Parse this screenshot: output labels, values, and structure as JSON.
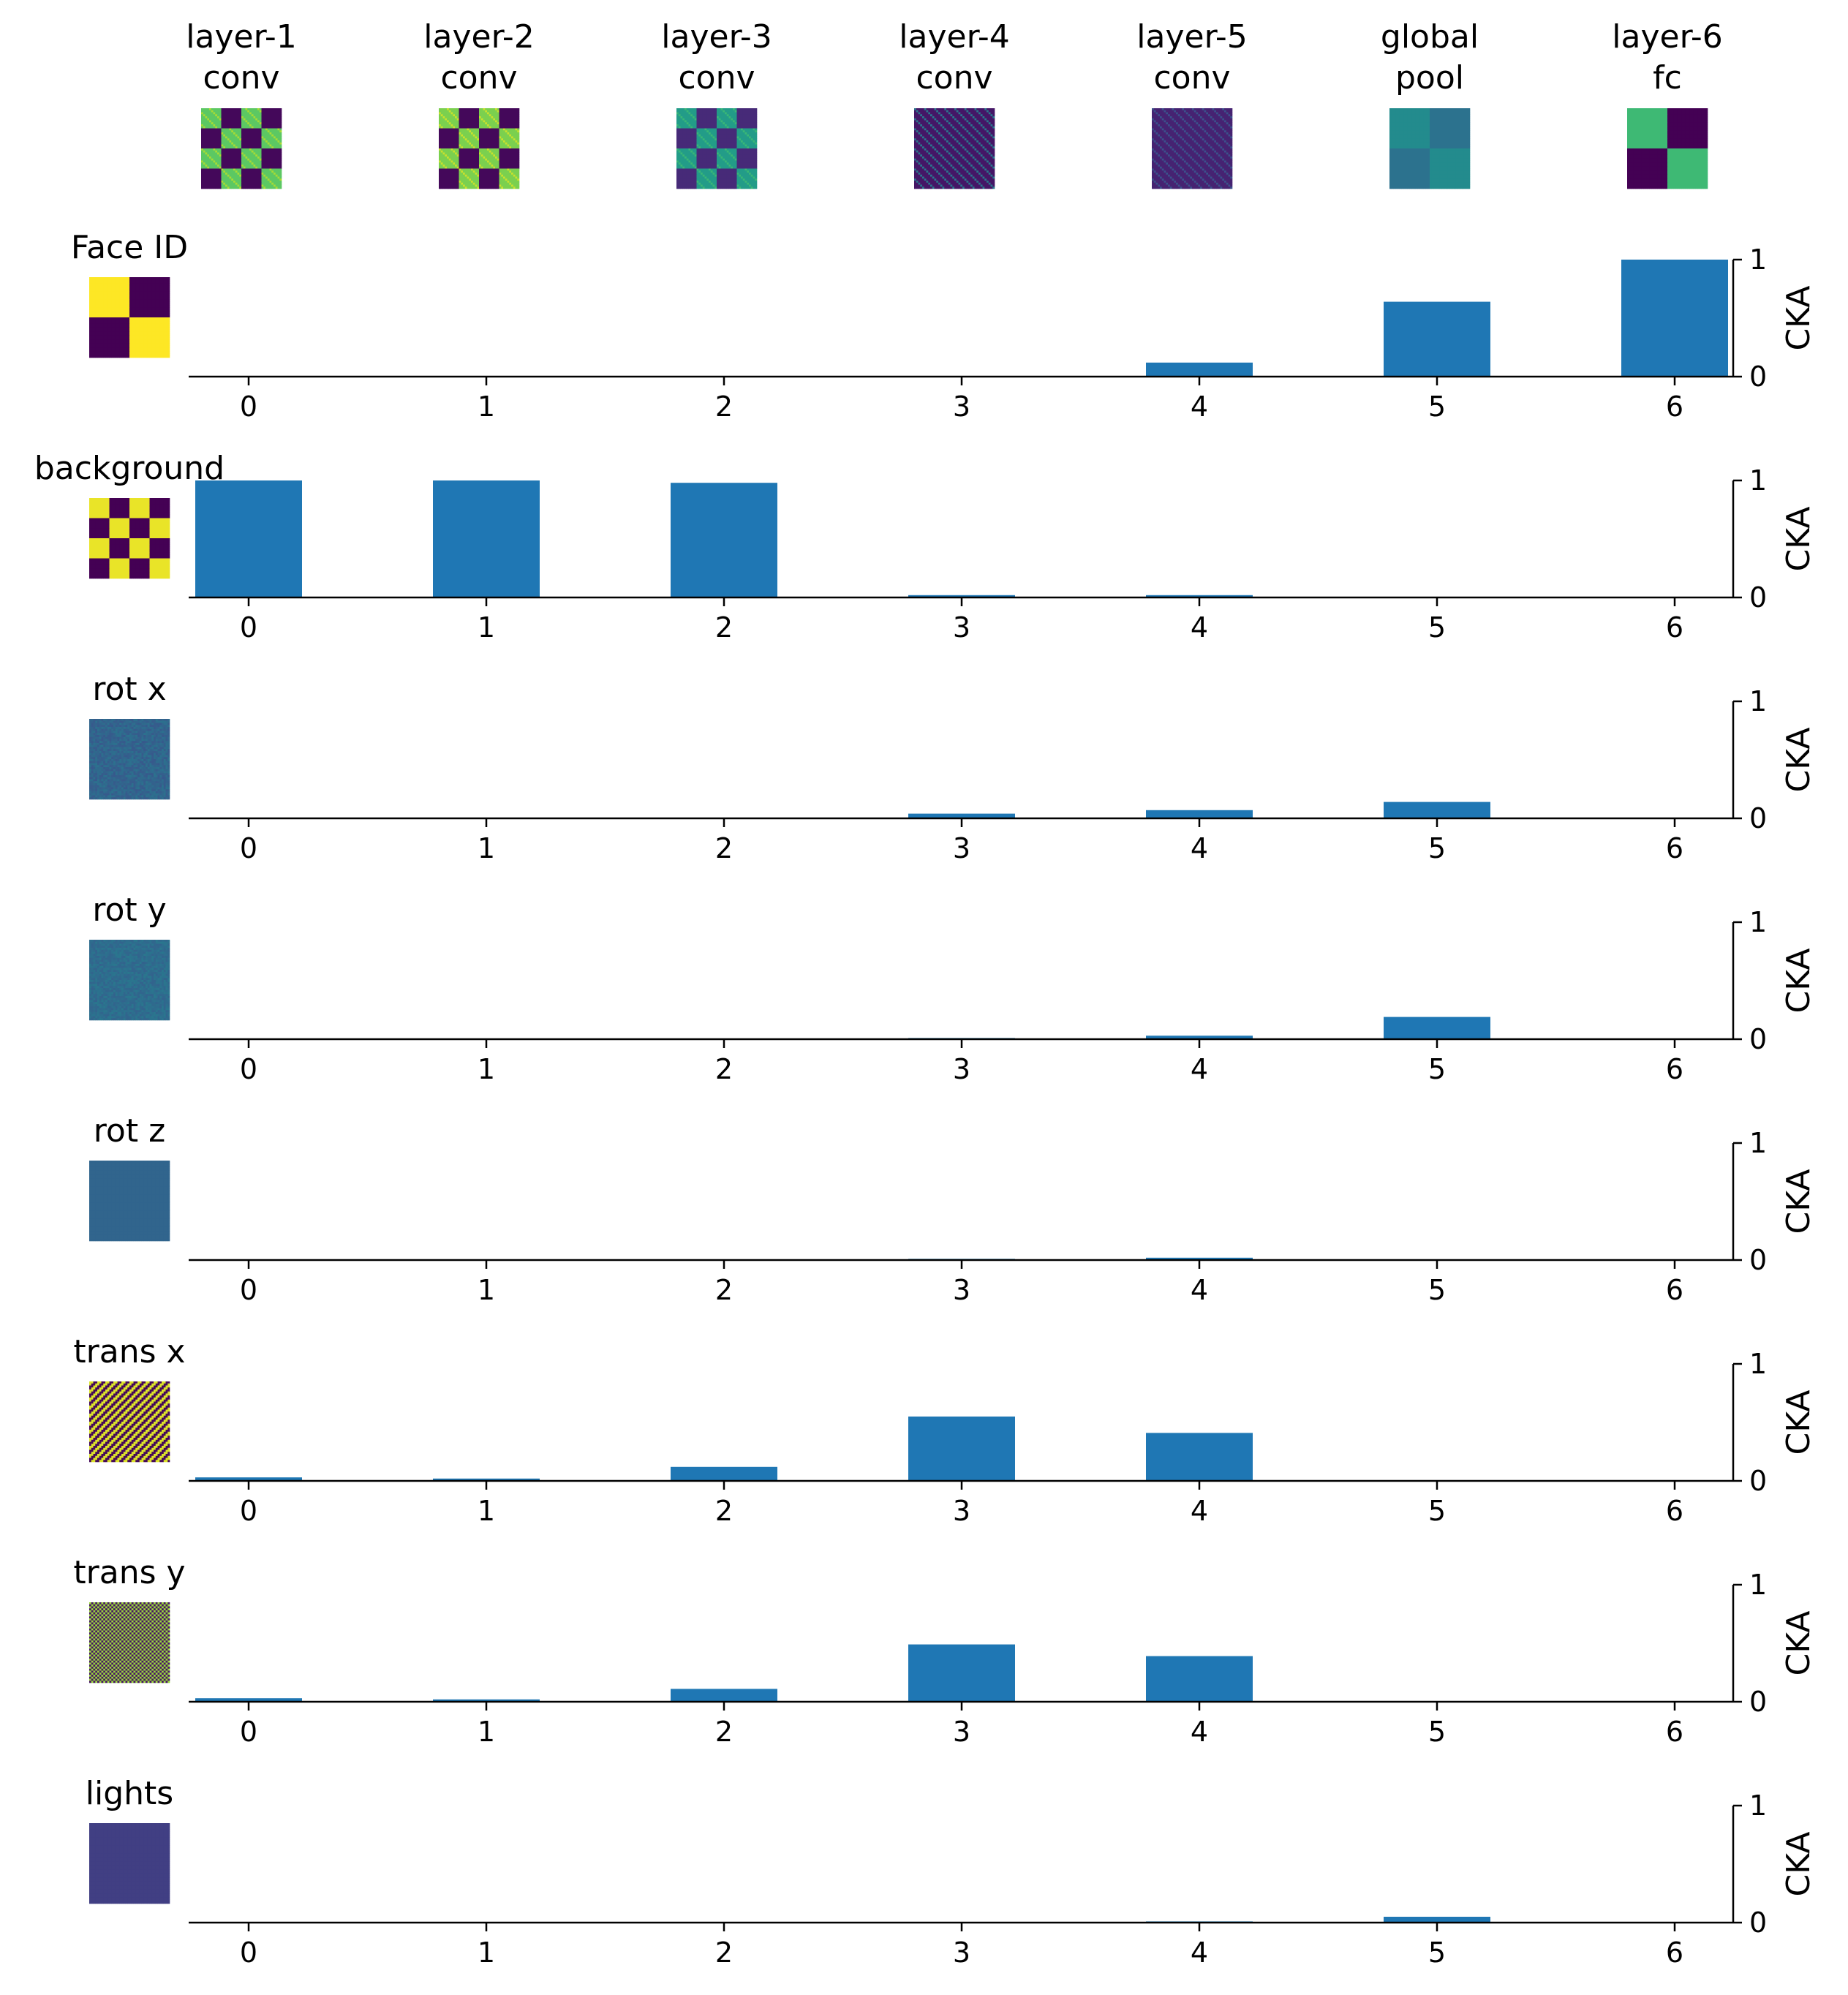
{
  "colors": {
    "bar": "#1f77b4",
    "viridis": [
      "#440154",
      "#472c7a",
      "#3b518b",
      "#2c718e",
      "#21908d",
      "#27ad81",
      "#5cc863",
      "#aadc32",
      "#fde725"
    ]
  },
  "layers": [
    {
      "line1": "layer-1",
      "line2": "conv",
      "thumb": {
        "pattern": "checker",
        "n": 4,
        "lo": 0.02,
        "hi": 0.75,
        "diag": true
      }
    },
    {
      "line1": "layer-2",
      "line2": "conv",
      "thumb": {
        "pattern": "checker",
        "n": 4,
        "lo": 0.02,
        "hi": 0.8,
        "diag": true
      }
    },
    {
      "line1": "layer-3",
      "line2": "conv",
      "thumb": {
        "pattern": "checker",
        "n": 4,
        "lo": 0.12,
        "hi": 0.55,
        "diag": true
      }
    },
    {
      "line1": "layer-4",
      "line2": "conv",
      "thumb": {
        "pattern": "stripes",
        "base": 0.06,
        "line": 0.4
      }
    },
    {
      "line1": "layer-5",
      "line2": "conv",
      "thumb": {
        "pattern": "stripes",
        "base": 0.1,
        "line": 0.25
      }
    },
    {
      "line1": "global",
      "line2": "pool",
      "thumb": {
        "pattern": "checker",
        "n": 2,
        "lo": 0.38,
        "hi": 0.48,
        "diag": false
      }
    },
    {
      "line1": "layer-6",
      "line2": "fc",
      "thumb": {
        "pattern": "checker",
        "n": 2,
        "lo": 0.0,
        "hi": 0.68,
        "diag": false
      }
    }
  ],
  "chart_data": {
    "type": "bar",
    "ylabel": "CKA",
    "ylim": [
      0,
      1
    ],
    "yticks": [
      "0",
      "1"
    ],
    "categories": [
      "0",
      "1",
      "2",
      "3",
      "4",
      "5",
      "6"
    ],
    "series": [
      {
        "name": "Face ID",
        "values": [
          0,
          0,
          0,
          0,
          0.12,
          0.64,
          1.0
        ],
        "thumb": {
          "pattern": "checker",
          "n": 2,
          "lo": 0.0,
          "hi": 1.0,
          "diag": false
        }
      },
      {
        "name": "background",
        "values": [
          1.0,
          1.0,
          0.98,
          0.02,
          0.02,
          0,
          0
        ],
        "thumb": {
          "pattern": "checker",
          "n": 4,
          "lo": 0.0,
          "hi": 0.97,
          "diag": false
        }
      },
      {
        "name": "rot x",
        "values": [
          0,
          0,
          0,
          0.04,
          0.07,
          0.14,
          0
        ],
        "thumb": {
          "pattern": "noise",
          "base": 0.33,
          "amp": 0.05
        }
      },
      {
        "name": "rot y",
        "values": [
          0,
          0,
          0,
          0.01,
          0.03,
          0.19,
          0
        ],
        "thumb": {
          "pattern": "noise",
          "base": 0.36,
          "amp": 0.04
        }
      },
      {
        "name": "rot z",
        "values": [
          0,
          0,
          0,
          0.01,
          0.02,
          0,
          0
        ],
        "thumb": {
          "pattern": "flat",
          "base": 0.33
        }
      },
      {
        "name": "trans x",
        "values": [
          0.03,
          0.02,
          0.12,
          0.55,
          0.41,
          0,
          0
        ],
        "thumb": {
          "pattern": "diagstripe",
          "lo": 0.02,
          "hi": 0.95,
          "period": 2
        }
      },
      {
        "name": "trans y",
        "values": [
          0.03,
          0.02,
          0.11,
          0.49,
          0.39,
          0,
          0
        ],
        "thumb": {
          "pattern": "diagstripe",
          "lo": 0.05,
          "hi": 0.85,
          "period": 1
        }
      },
      {
        "name": "lights",
        "values": [
          0,
          0,
          0,
          0,
          0.01,
          0.05,
          0
        ],
        "thumb": {
          "pattern": "flat",
          "base": 0.19
        }
      }
    ]
  }
}
